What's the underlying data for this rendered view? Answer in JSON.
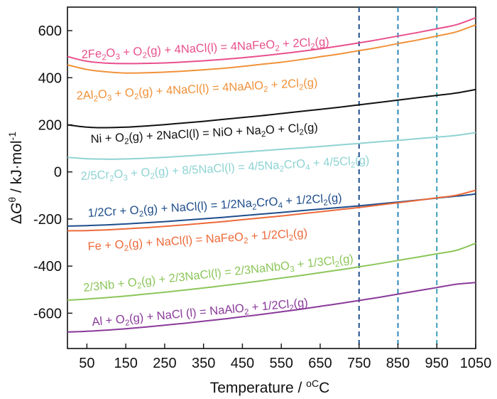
{
  "chart_data": {
    "type": "line",
    "xlabel": "Temperature / ",
    "xlabel_unit": "oC",
    "ylabel_prefix": "Δ",
    "ylabel_symbol": "G",
    "ylabel_sup": "θ",
    "ylabel_rest": " / kJ·mol",
    "ylabel_sup2": "-1",
    "xlim": [
      0,
      1050
    ],
    "ylim": [
      -750,
      700
    ],
    "x_ticks": [
      50,
      150,
      250,
      350,
      450,
      550,
      650,
      750,
      850,
      950,
      1050
    ],
    "y_ticks": [
      -600,
      -400,
      -200,
      0,
      200,
      400,
      600
    ],
    "grid": false,
    "legend": "none",
    "vertical_lines": {
      "x": [
        750,
        850,
        950
      ],
      "colors": [
        "#1f4e8c",
        "#2f86b8",
        "#3aa0b8"
      ],
      "style": "dashed"
    },
    "series": [
      {
        "color": "#e8508c",
        "label": [
          {
            "t": "2Fe"
          },
          {
            "t": "2",
            "s": "sub"
          },
          {
            "t": "O"
          },
          {
            "t": "3",
            "s": "sub"
          },
          {
            "t": " + O"
          },
          {
            "t": "2",
            "s": "sub"
          },
          {
            "t": "(g) + 4NaCl(l) = 4NaFeO"
          },
          {
            "t": "2",
            "s": "sub"
          },
          {
            "t": " + 2Cl"
          },
          {
            "t": "2",
            "s": "sub"
          },
          {
            "t": "(g)"
          }
        ],
        "x": [
          0,
          50,
          100,
          150,
          200,
          250,
          300,
          350,
          400,
          450,
          500,
          550,
          600,
          650,
          700,
          750,
          800,
          850,
          900,
          950,
          1000,
          1050
        ],
        "y": [
          490,
          470,
          462,
          460,
          461,
          463,
          467,
          472,
          478,
          485,
          493,
          502,
          512,
          523,
          535,
          548,
          562,
          577,
          592,
          608,
          625,
          655
        ]
      },
      {
        "color": "#f0923a",
        "label": [
          {
            "t": "2Al"
          },
          {
            "t": "2",
            "s": "sub"
          },
          {
            "t": "O"
          },
          {
            "t": "3",
            "s": "sub"
          },
          {
            "t": " + O"
          },
          {
            "t": "2",
            "s": "sub"
          },
          {
            "t": "(g) + 4NaCl(l) = 4NaAlO"
          },
          {
            "t": "2",
            "s": "sub"
          },
          {
            "t": " + 2Cl"
          },
          {
            "t": "2",
            "s": "sub"
          },
          {
            "t": "(g)"
          }
        ],
        "x": [
          0,
          50,
          100,
          150,
          200,
          250,
          300,
          350,
          400,
          450,
          500,
          550,
          600,
          650,
          700,
          750,
          800,
          850,
          900,
          950,
          1000,
          1050
        ],
        "y": [
          455,
          435,
          425,
          420,
          421,
          424,
          428,
          434,
          440,
          448,
          457,
          466,
          477,
          489,
          501,
          515,
          529,
          545,
          560,
          577,
          595,
          625
        ]
      },
      {
        "color": "#111111",
        "label": [
          {
            "t": "Ni + O"
          },
          {
            "t": "2",
            "s": "sub"
          },
          {
            "t": "(g) + 2NaCl(l) = NiO + Na"
          },
          {
            "t": "2",
            "s": "sub"
          },
          {
            "t": "O + Cl"
          },
          {
            "t": "2",
            "s": "sub"
          },
          {
            "t": "(g)"
          }
        ],
        "x": [
          0,
          50,
          100,
          150,
          200,
          250,
          300,
          350,
          400,
          450,
          500,
          550,
          600,
          650,
          700,
          750,
          800,
          850,
          900,
          950,
          1000,
          1050
        ],
        "y": [
          200,
          190,
          188,
          190,
          195,
          201,
          208,
          215,
          223,
          231,
          239,
          248,
          257,
          266,
          275,
          285,
          295,
          305,
          315,
          325,
          335,
          350
        ]
      },
      {
        "color": "#8fd3d3",
        "label": [
          {
            "t": "2/5Cr"
          },
          {
            "t": "2",
            "s": "sub"
          },
          {
            "t": "O"
          },
          {
            "t": "3",
            "s": "sub"
          },
          {
            "t": " + O"
          },
          {
            "t": "2",
            "s": "sub"
          },
          {
            "t": "(g) + 8/5NaCl(l)  = 4/5Na"
          },
          {
            "t": "2",
            "s": "sub"
          },
          {
            "t": "CrO"
          },
          {
            "t": "4",
            "s": "sub"
          },
          {
            "t": " + 4/5Cl"
          },
          {
            "t": "2",
            "s": "sub"
          },
          {
            "t": "(g)"
          }
        ],
        "x": [
          0,
          50,
          100,
          150,
          200,
          250,
          300,
          350,
          400,
          450,
          500,
          550,
          600,
          650,
          700,
          750,
          800,
          850,
          900,
          950,
          1000,
          1050
        ],
        "y": [
          62,
          56,
          54,
          55,
          58,
          62,
          67,
          72,
          78,
          84,
          90,
          96,
          102,
          108,
          115,
          121,
          128,
          134,
          141,
          148,
          155,
          167
        ]
      },
      {
        "color": "#1f4e8c",
        "label": [
          {
            "t": "1/2Cr + O"
          },
          {
            "t": "2",
            "s": "sub"
          },
          {
            "t": "(g) + NaCl(l) = 1/2Na"
          },
          {
            "t": "2",
            "s": "sub"
          },
          {
            "t": "CrO"
          },
          {
            "t": "4",
            "s": "sub"
          },
          {
            "t": " + 1/2Cl"
          },
          {
            "t": "2",
            "s": "sub"
          },
          {
            "t": "(g)"
          }
        ],
        "x": [
          0,
          50,
          100,
          150,
          200,
          250,
          300,
          350,
          400,
          450,
          500,
          550,
          600,
          650,
          700,
          750,
          800,
          850,
          900,
          950,
          1000,
          1050
        ],
        "y": [
          -230,
          -228,
          -225,
          -221,
          -216,
          -211,
          -205,
          -199,
          -193,
          -186,
          -179,
          -172,
          -165,
          -158,
          -151,
          -144,
          -136,
          -128,
          -120,
          -111,
          -103,
          -94
        ]
      },
      {
        "color": "#ec6a3a",
        "label": [
          {
            "t": "Fe + O"
          },
          {
            "t": "2",
            "s": "sub"
          },
          {
            "t": "(g) + NaCl(l) = NaFeO"
          },
          {
            "t": "2",
            "s": "sub"
          },
          {
            "t": " + 1/2Cl"
          },
          {
            "t": "2",
            "s": "sub"
          },
          {
            "t": "(g)"
          }
        ],
        "x": [
          0,
          50,
          100,
          150,
          200,
          250,
          300,
          350,
          400,
          450,
          500,
          550,
          600,
          650,
          700,
          750,
          800,
          850,
          900,
          950,
          1000,
          1050
        ],
        "y": [
          -250,
          -249,
          -246,
          -242,
          -237,
          -231,
          -225,
          -218,
          -211,
          -203,
          -195,
          -187,
          -178,
          -169,
          -160,
          -151,
          -141,
          -131,
          -121,
          -110,
          -99,
          -78
        ]
      },
      {
        "color": "#8cc65a",
        "label": [
          {
            "t": "2/3Nb + O"
          },
          {
            "t": "2",
            "s": "sub"
          },
          {
            "t": "(g) + 2/3NaCl(l) = 2/3NaNbO"
          },
          {
            "t": "3",
            "s": "sub"
          },
          {
            "t": " + 1/3Cl"
          },
          {
            "t": "2",
            "s": "sub"
          },
          {
            "t": "(g)"
          }
        ],
        "x": [
          0,
          50,
          100,
          150,
          200,
          250,
          300,
          350,
          400,
          450,
          500,
          550,
          600,
          650,
          700,
          750,
          800,
          850,
          900,
          950,
          1000,
          1050
        ],
        "y": [
          -545,
          -540,
          -534,
          -527,
          -519,
          -511,
          -502,
          -493,
          -483,
          -473,
          -462,
          -451,
          -440,
          -428,
          -416,
          -403,
          -390,
          -376,
          -362,
          -348,
          -333,
          -303
        ]
      },
      {
        "color": "#8a3a9a",
        "label": [
          {
            "t": "Al + O"
          },
          {
            "t": "2",
            "s": "sub"
          },
          {
            "t": "(g) + NaCl (l) = NaAlO"
          },
          {
            "t": "2",
            "s": "sub"
          },
          {
            "t": " + 1/2Cl"
          },
          {
            "t": "2",
            "s": "sub"
          },
          {
            "t": "(g)"
          }
        ],
        "x": [
          0,
          50,
          100,
          150,
          200,
          250,
          300,
          350,
          400,
          450,
          500,
          550,
          600,
          650,
          700,
          750,
          800,
          850,
          900,
          950,
          1000,
          1050
        ],
        "y": [
          -680,
          -677,
          -672,
          -666,
          -659,
          -651,
          -643,
          -634,
          -625,
          -615,
          -605,
          -594,
          -583,
          -571,
          -559,
          -546,
          -533,
          -519,
          -505,
          -491,
          -477,
          -470
        ]
      }
    ]
  }
}
